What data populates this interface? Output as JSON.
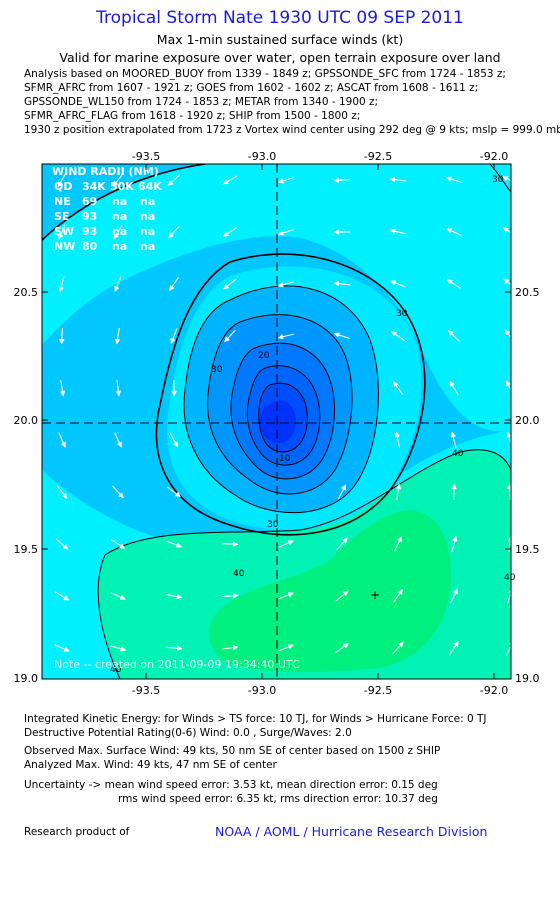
{
  "header": {
    "title": "Tropical Storm Nate 1930 UTC 09 SEP 2011",
    "subtitle": "Max 1-min sustained surface winds (kt)",
    "valid_line": "Valid for marine exposure over water, open terrain exposure over land",
    "analysis_lines": [
      "Analysis based on MOORED_BUOY from 1339 - 1849 z; GPSSONDE_SFC from 1724 - 1853 z;",
      "SFMR_AFRC from 1607 - 1921 z; GOES from 1602 - 1602 z; ASCAT from 1608 - 1611 z;",
      "GPSSONDE_WL150 from 1724 - 1853 z; METAR from 1340 - 1900 z;",
      "SFMR_AFRC_FLAG from 1618 - 1920 z; SHIP from 1500 - 1800 z;"
    ],
    "position_line": "1930 z position extrapolated from 1723 z Vortex wind center using 292 deg @ 9 kts; mslp = 999.0 mb"
  },
  "chart_data": {
    "type": "contour",
    "x_ticks": [
      "-93.5",
      "-93.0",
      "-92.5",
      "-92.0"
    ],
    "y_ticks": [
      "20.5",
      "20.0",
      "19.5",
      "19.0"
    ],
    "xlim": [
      -93.9,
      -91.98
    ],
    "ylim": [
      19.0,
      20.98
    ],
    "grid": "dashed crosshair through storm center",
    "center": [
      -92.93,
      19.98
    ],
    "contour_labels": [
      "10",
      "20",
      "30",
      "30",
      "30",
      "40",
      "40",
      "40",
      "40",
      "30"
    ],
    "wind_radii": {
      "title": "WIND RADII (NM)",
      "header": [
        "QD",
        "34K",
        "50K",
        "64K"
      ],
      "rows": [
        [
          "NE",
          "69",
          "na",
          "na"
        ],
        [
          "SE",
          "93",
          "na",
          "na"
        ],
        [
          "SW",
          "93",
          "na",
          "na"
        ],
        [
          "NW",
          "80",
          "na",
          "na"
        ]
      ]
    },
    "note": "Note -- created on 2011-09-09  19:34:40 UTC",
    "max_marker": "+",
    "colors": {
      "cyan": "#00f0ff",
      "sky": "#00c8ff",
      "blue1": "#0096ff",
      "blue2": "#0064ff",
      "blue3": "#0032ff",
      "green1": "#00f2b5",
      "green2": "#00f080"
    }
  },
  "footer": {
    "lines": [
      "Integrated Kinetic Energy:  for Winds > TS force: 10 TJ,  for Winds > Hurricane Force: 0 TJ",
      "Destructive Potential Rating(0-6)   Wind: 0.0 , Surge/Waves: 2.0",
      "Observed Max. Surface Wind: 49 kts, 50 nm SE of center based on 1500 z SHIP",
      "Analyzed Max. Wind: 49 kts, 47 nm SE of center",
      "Uncertainty -> mean wind speed error: 3.53 kt,   mean direction error: 0.15 deg",
      "rms wind speed error: 6.35 kt,   rms direction error: 10.37 deg"
    ],
    "research_label": "Research product of",
    "credit": "NOAA / AOML / Hurricane Research Division"
  }
}
